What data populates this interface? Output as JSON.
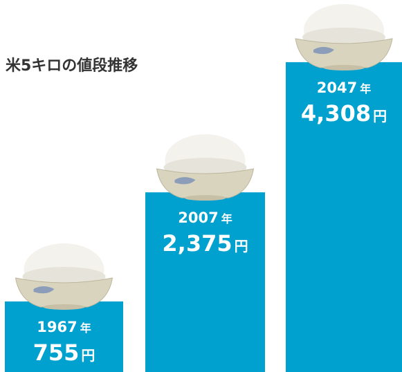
{
  "chart_data": {
    "type": "bar",
    "title": "米5キロの値段推移",
    "categories": [
      "1967",
      "2007",
      "2047"
    ],
    "year_unit": "年",
    "values": [
      755,
      2375,
      4308
    ],
    "value_labels": [
      "755",
      "2,375",
      "4,308"
    ],
    "value_unit": "円",
    "color": "#00a0cf"
  }
}
